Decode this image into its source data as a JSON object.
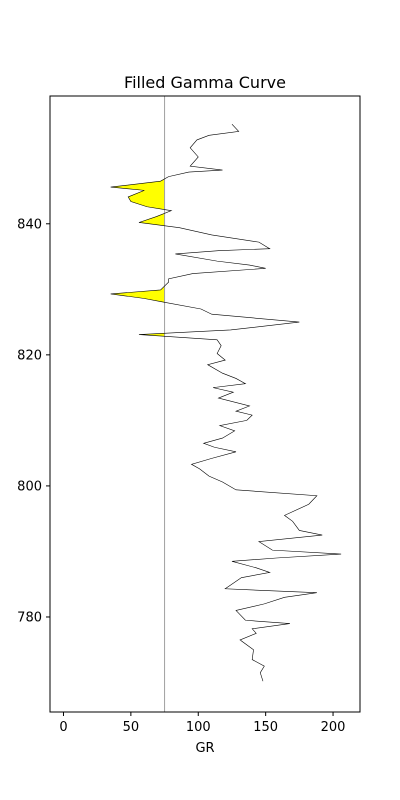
{
  "chart_data": {
    "type": "line",
    "title": "Filled Gamma Curve",
    "xlabel": "GR",
    "ylabel": "",
    "xlim": [
      -10,
      220
    ],
    "ylim": [
      765.5,
      859.5
    ],
    "xticks": [
      0,
      50,
      100,
      150,
      200
    ],
    "yticks": [
      780,
      800,
      820,
      840
    ],
    "cutoff": 75,
    "grid": false,
    "fill_color": "#ffff00",
    "line_color": "#000000",
    "cutoff_color": "#a0a0a0",
    "series": [
      {
        "points": [
          [
            148,
            770.2
          ],
          [
            146,
            771.5
          ],
          [
            149,
            772.5
          ],
          [
            140,
            773.5
          ],
          [
            141,
            775
          ],
          [
            131,
            776.5
          ],
          [
            143,
            777.5
          ],
          [
            140,
            778.2
          ],
          [
            168,
            779
          ],
          [
            135,
            779.5
          ],
          [
            128,
            781
          ],
          [
            149,
            782
          ],
          [
            164,
            783
          ],
          [
            188,
            783.7
          ],
          [
            120,
            784.3
          ],
          [
            132,
            786
          ],
          [
            153,
            786.8
          ],
          [
            143,
            787.5
          ],
          [
            125,
            788.5
          ],
          [
            158,
            789
          ],
          [
            206,
            789.6
          ],
          [
            155,
            790.2
          ],
          [
            145,
            791.5
          ],
          [
            192,
            792.5
          ],
          [
            175,
            793.2
          ],
          [
            170,
            794.6
          ],
          [
            164,
            795.5
          ],
          [
            182,
            797.2
          ],
          [
            188,
            798.5
          ],
          [
            128,
            799.4
          ],
          [
            118,
            800.6
          ],
          [
            108,
            801.5
          ],
          [
            101,
            802.6
          ],
          [
            95,
            803.3
          ],
          [
            110,
            804.2
          ],
          [
            128,
            805.2
          ],
          [
            112,
            805.9
          ],
          [
            104,
            806.5
          ],
          [
            118,
            807.3
          ],
          [
            127,
            808.4
          ],
          [
            116,
            809.2
          ],
          [
            136,
            810
          ],
          [
            140,
            810.8
          ],
          [
            128,
            811.4
          ],
          [
            138,
            812.2
          ],
          [
            115,
            813.4
          ],
          [
            126,
            814.3
          ],
          [
            111,
            815
          ],
          [
            135,
            815.6
          ],
          [
            128,
            816.4
          ],
          [
            118,
            817.2
          ],
          [
            107,
            818.5
          ],
          [
            120,
            819.2
          ],
          [
            114,
            820.2
          ],
          [
            117,
            821.4
          ],
          [
            114,
            822.3
          ],
          [
            56,
            823.1
          ],
          [
            124,
            823.8
          ],
          [
            175,
            825
          ],
          [
            110,
            826.2
          ],
          [
            102,
            827
          ],
          [
            73,
            828.1
          ],
          [
            60,
            828.6
          ],
          [
            35,
            829.3
          ],
          [
            72,
            829.9
          ],
          [
            78,
            831.1
          ],
          [
            78,
            831.6
          ],
          [
            96,
            832.4
          ],
          [
            150,
            833.2
          ],
          [
            138,
            833.7
          ],
          [
            114,
            834.3
          ],
          [
            83,
            835.4
          ],
          [
            115,
            835.9
          ],
          [
            153,
            836.2
          ],
          [
            145,
            837.2
          ],
          [
            110,
            838.3
          ],
          [
            86,
            839.4
          ],
          [
            56,
            840.2
          ],
          [
            69,
            841.1
          ],
          [
            80,
            842
          ],
          [
            62,
            842.6
          ],
          [
            50,
            843.4
          ],
          [
            48,
            844.1
          ],
          [
            60,
            845.1
          ],
          [
            35,
            845.6
          ],
          [
            72,
            846.5
          ],
          [
            78,
            847.2
          ],
          [
            93,
            847.9
          ],
          [
            118,
            848.2
          ],
          [
            94,
            848.8
          ],
          [
            100,
            850.2
          ],
          [
            94,
            851.6
          ],
          [
            99,
            852.8
          ],
          [
            108,
            853.5
          ],
          [
            130,
            854.1
          ],
          [
            125,
            855.2
          ]
        ]
      }
    ]
  }
}
